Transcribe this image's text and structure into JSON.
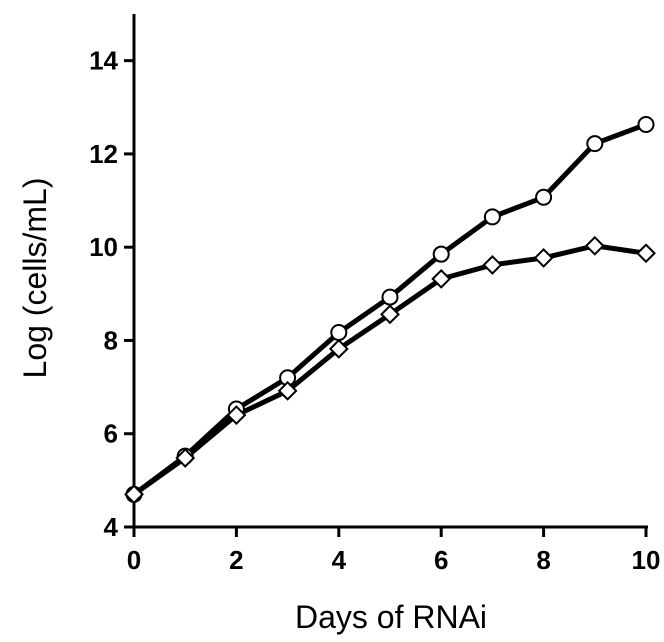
{
  "chart_data": {
    "type": "line",
    "title": "",
    "xlabel": "Days of RNAi",
    "ylabel": "Log (cells/mL)",
    "xlim": [
      0,
      10
    ],
    "ylim": [
      4,
      15
    ],
    "xticks": [
      0,
      2,
      4,
      6,
      8,
      10
    ],
    "yticks": [
      4,
      6,
      8,
      10,
      12,
      14
    ],
    "grid": false,
    "legend": "none",
    "series": [
      {
        "marker": "circle",
        "color": "#000000",
        "x": [
          0,
          1,
          2,
          3,
          4,
          5,
          6,
          7,
          8,
          9,
          10
        ],
        "y": [
          4.7,
          5.52,
          6.53,
          7.2,
          8.17,
          8.93,
          9.85,
          10.65,
          11.07,
          12.22,
          12.63
        ]
      },
      {
        "marker": "diamond",
        "color": "#000000",
        "x": [
          0,
          1,
          2,
          3,
          4,
          5,
          6,
          7,
          8,
          9,
          10
        ],
        "y": [
          4.7,
          5.48,
          6.4,
          6.92,
          7.82,
          8.56,
          9.32,
          9.62,
          9.77,
          10.03,
          9.87
        ]
      }
    ]
  }
}
